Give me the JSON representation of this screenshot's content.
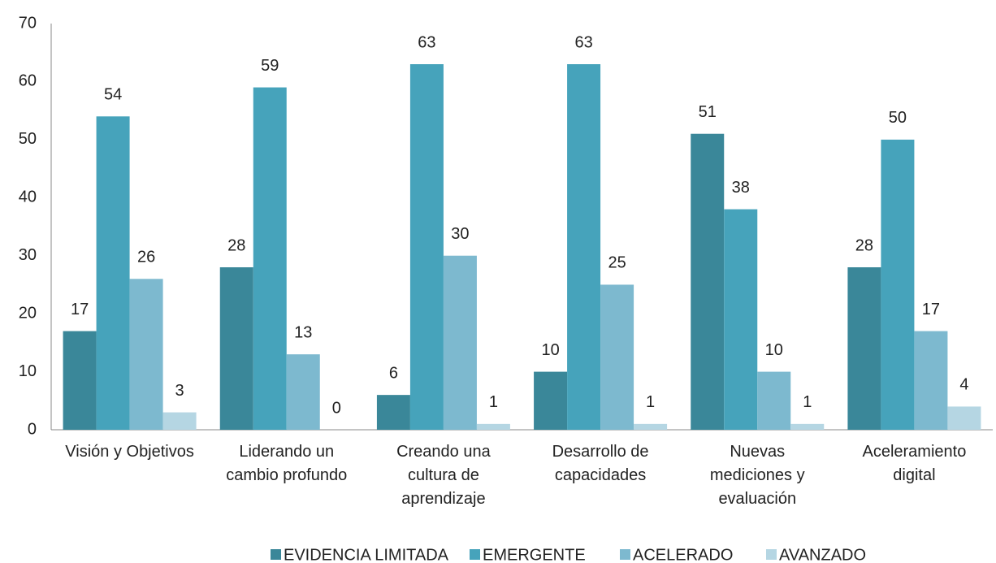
{
  "chart_data": {
    "type": "bar",
    "categories": [
      "Visión y Objetivos",
      "Liderando un\ncambio profundo",
      "Creando una\ncultura de\naprendizaje",
      "Desarrollo de\ncapacidades",
      "Nuevas\nmediciones y\nevaluación",
      "Aceleramiento\ndigital"
    ],
    "series": [
      {
        "name": "EVIDENCIA LIMITADA",
        "color": "#3a8799",
        "values": [
          17,
          28,
          6,
          10,
          51,
          28
        ]
      },
      {
        "name": "EMERGENTE",
        "color": "#46a3bb",
        "values": [
          54,
          59,
          63,
          63,
          38,
          50
        ]
      },
      {
        "name": "ACELERADO",
        "color": "#7db9cf",
        "values": [
          26,
          13,
          30,
          25,
          10,
          17
        ]
      },
      {
        "name": "AVANZADO",
        "color": "#b5d6e3",
        "values": [
          3,
          0,
          1,
          1,
          1,
          4
        ]
      }
    ],
    "ylim": [
      0,
      70
    ],
    "yticks": [
      0,
      10,
      20,
      30,
      40,
      50,
      60,
      70
    ],
    "grid": false,
    "legend": "bottom"
  }
}
